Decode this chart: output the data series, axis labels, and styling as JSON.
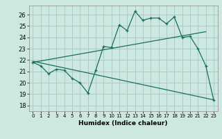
{
  "xlabel": "Humidex (Indice chaleur)",
  "ylabel": "",
  "background_color": "#cce8e0",
  "line_color": "#1a6e5e",
  "grid_color": "#aaccc4",
  "xlim": [
    -0.5,
    23.5
  ],
  "ylim": [
    17.5,
    26.8
  ],
  "yticks": [
    18,
    19,
    20,
    21,
    22,
    23,
    24,
    25,
    26
  ],
  "xticks": [
    0,
    1,
    2,
    3,
    4,
    5,
    6,
    7,
    8,
    9,
    10,
    11,
    12,
    13,
    14,
    15,
    16,
    17,
    18,
    19,
    20,
    21,
    22,
    23
  ],
  "line1_x": [
    0,
    1,
    2,
    3,
    4,
    5,
    6,
    7,
    8,
    9,
    10,
    11,
    12,
    13,
    14,
    15,
    16,
    17,
    18,
    19,
    20,
    21,
    22,
    23
  ],
  "line1_y": [
    21.8,
    21.5,
    20.8,
    21.2,
    21.1,
    20.4,
    20.0,
    19.1,
    21.1,
    23.2,
    23.1,
    25.1,
    24.6,
    26.3,
    25.5,
    25.7,
    25.7,
    25.2,
    25.8,
    24.0,
    24.1,
    23.0,
    21.5,
    18.5
  ],
  "line2_x": [
    0,
    22
  ],
  "line2_y": [
    21.8,
    24.5
  ],
  "line3_x": [
    0,
    23
  ],
  "line3_y": [
    21.9,
    18.5
  ],
  "marker": "+"
}
